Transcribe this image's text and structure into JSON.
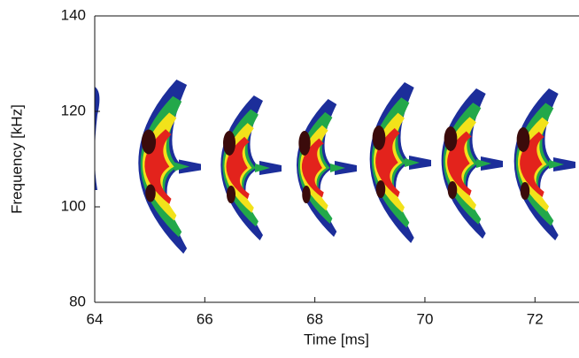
{
  "chart_data": {
    "type": "spectrogram",
    "xlabel": "Time [ms]",
    "ylabel": "Frequency [kHz]",
    "xlim": [
      64,
      72.8
    ],
    "ylim": [
      80,
      140
    ],
    "xticks": [
      64,
      66,
      68,
      70,
      72
    ],
    "yticks": [
      80,
      100,
      120,
      140
    ]
  }
}
